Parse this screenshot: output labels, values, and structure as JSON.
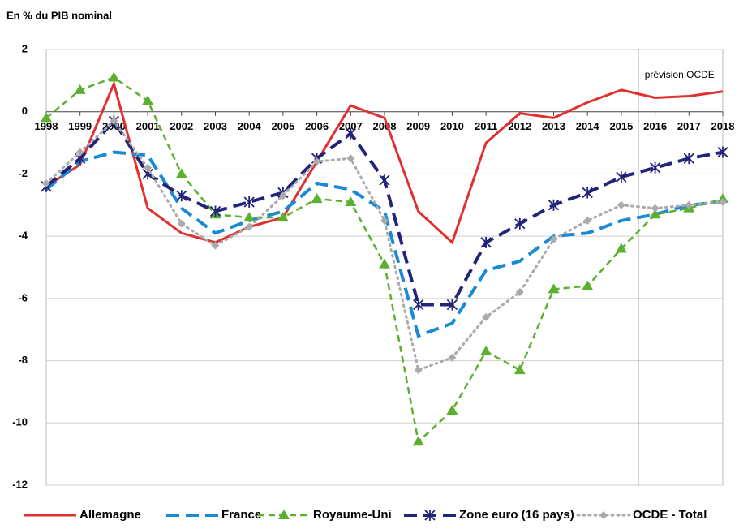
{
  "chart_data": {
    "type": "line",
    "title": "En % du PIB nominal",
    "annotation": "prévision OCDE",
    "categories": [
      "1998",
      "1999",
      "2000",
      "2001",
      "2002",
      "2003",
      "2004",
      "2005",
      "2006",
      "2007",
      "2008",
      "2009",
      "2010",
      "2011",
      "2012",
      "2013",
      "2014",
      "2015",
      "2016",
      "2017",
      "2018"
    ],
    "ylim": [
      -12,
      2
    ],
    "yticks": [
      -12,
      -10,
      -8,
      -6,
      -4,
      -2,
      0,
      2
    ],
    "grid": true,
    "legend": "bottom",
    "series": [
      {
        "name": "Allemagne",
        "color": "#e03030",
        "line_style": "solid",
        "marker": "none",
        "values": [
          -2.4,
          -1.7,
          0.9,
          -3.1,
          -3.9,
          -4.2,
          -3.7,
          -3.4,
          -1.6,
          0.2,
          -0.2,
          -3.2,
          -4.2,
          -1.0,
          -0.05,
          -0.2,
          0.3,
          0.7,
          0.45,
          0.5,
          0.65
        ]
      },
      {
        "name": "France",
        "color": "#1a8ad4",
        "line_style": "dashed",
        "marker": "none",
        "values": [
          -2.5,
          -1.6,
          -1.3,
          -1.4,
          -3.1,
          -3.9,
          -3.5,
          -3.2,
          -2.3,
          -2.5,
          -3.2,
          -7.2,
          -6.8,
          -5.1,
          -4.8,
          -4.0,
          -3.9,
          -3.5,
          -3.3,
          -3.0,
          -2.9
        ]
      },
      {
        "name": "Royaume-Uni",
        "color": "#5cb030",
        "line_style": "dashed-short",
        "marker": "triangle",
        "values": [
          -0.2,
          0.7,
          1.1,
          0.35,
          -2.0,
          -3.3,
          -3.4,
          -3.4,
          -2.8,
          -2.9,
          -4.9,
          -10.6,
          -9.6,
          -7.7,
          -8.3,
          -5.7,
          -5.6,
          -4.4,
          -3.3,
          -3.1,
          -2.8
        ]
      },
      {
        "name": "Zone euro (16 pays)",
        "color": "#23237a",
        "line_style": "dashed",
        "marker": "star",
        "values": [
          -2.4,
          -1.5,
          -0.3,
          -2.0,
          -2.7,
          -3.2,
          -2.9,
          -2.6,
          -1.5,
          -0.7,
          -2.2,
          -6.2,
          -6.2,
          -4.2,
          -3.6,
          -3.0,
          -2.6,
          -2.1,
          -1.8,
          -1.5,
          -1.3
        ]
      },
      {
        "name": "OCDE - Total",
        "color": "#aaaaaa",
        "line_style": "dotted",
        "marker": "diamond",
        "values": [
          -2.3,
          -1.3,
          -0.3,
          -1.8,
          -3.6,
          -4.3,
          -3.7,
          -2.7,
          -1.6,
          -1.5,
          -3.5,
          -8.3,
          -7.9,
          -6.6,
          -5.8,
          -4.1,
          -3.5,
          -3.0,
          -3.1,
          -3.0,
          -2.9
        ]
      }
    ]
  }
}
